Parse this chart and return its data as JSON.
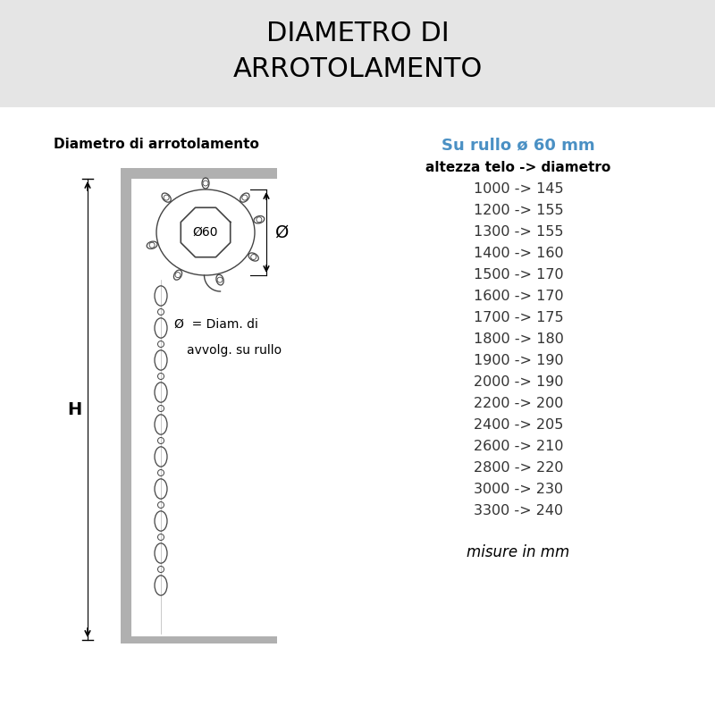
{
  "title_line1": "DIAMETRO DI",
  "title_line2": "ARROTOLAMENTO",
  "title_bg_color": "#e5e5e5",
  "title_fontsize": 22,
  "title_font_weight": "normal",
  "bg_color": "#ffffff",
  "left_label": "Diametro di arrotolamento",
  "right_header_colored": "Su rullo ø 60 mm",
  "right_header_colored_color": "#4a90c4",
  "right_subheader": "altezza telo -> diametro",
  "data_rows": [
    "1000 -> 145",
    "1200 -> 155",
    "1300 -> 155",
    "1400 -> 160",
    "1500 -> 170",
    "1600 -> 170",
    "1700 -> 175",
    "1800 -> 180",
    "1900 -> 190",
    "2000 -> 190",
    "2200 -> 200",
    "2400 -> 205",
    "2600 -> 210",
    "2800 -> 220",
    "3000 -> 230",
    "3300 -> 240"
  ],
  "footer": "misure in mm",
  "diagram_label_H": "H",
  "diagram_label_phi_text1": "Ø  = Diam. di",
  "diagram_label_phi_text2": "avvolg. su rullo",
  "diagram_label_phi60": "Ø60",
  "diagram_label_phi_right": "Ø",
  "text_color": "#333333",
  "data_text_color": "#333333",
  "line_color": "#444444",
  "wall_color": "#b0b0b0"
}
